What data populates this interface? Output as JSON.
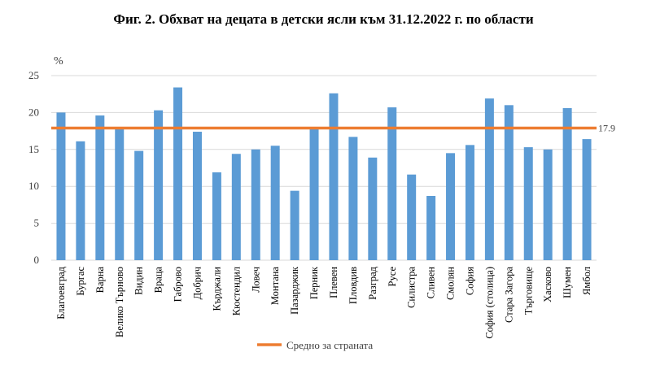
{
  "chart_data": {
    "type": "bar",
    "title": "Фиг. 2. Обхват на децата в детски ясли към 31.12.2022 г. по области",
    "unit": "%",
    "ylim": [
      0,
      25
    ],
    "yticks": [
      "0",
      "5",
      "10",
      "15",
      "20",
      "25"
    ],
    "grid": true,
    "categories": [
      "Благоевград",
      "Бургас",
      "Варна",
      "Велико Търново",
      "Видин",
      "Враца",
      "Габрово",
      "Добрич",
      "Кърджали",
      "Кюстендил",
      "Ловеч",
      "Монтана",
      "Пазарджик",
      "Перник",
      "Плевен",
      "Пловдив",
      "Разград",
      "Русе",
      "Силистра",
      "Сливен",
      "Смолян",
      "София",
      "София (столица)",
      "Стара Загора",
      "Търговище",
      "Хасково",
      "Шумен",
      "Ямбол"
    ],
    "values": [
      20.0,
      16.1,
      19.6,
      17.8,
      14.8,
      20.3,
      23.4,
      17.4,
      11.9,
      14.4,
      15.0,
      15.5,
      9.4,
      17.8,
      22.6,
      16.7,
      13.9,
      20.7,
      11.6,
      8.7,
      14.5,
      15.6,
      21.9,
      21.0,
      15.3,
      15.0,
      20.6,
      16.4
    ],
    "average": {
      "name": "Средно за страната",
      "value": 17.9,
      "label": "17.9"
    },
    "legend_position": "bottom",
    "colors": {
      "bar": "#5b9bd5",
      "average": "#ed7d31",
      "grid": "#d9d9d9"
    }
  }
}
